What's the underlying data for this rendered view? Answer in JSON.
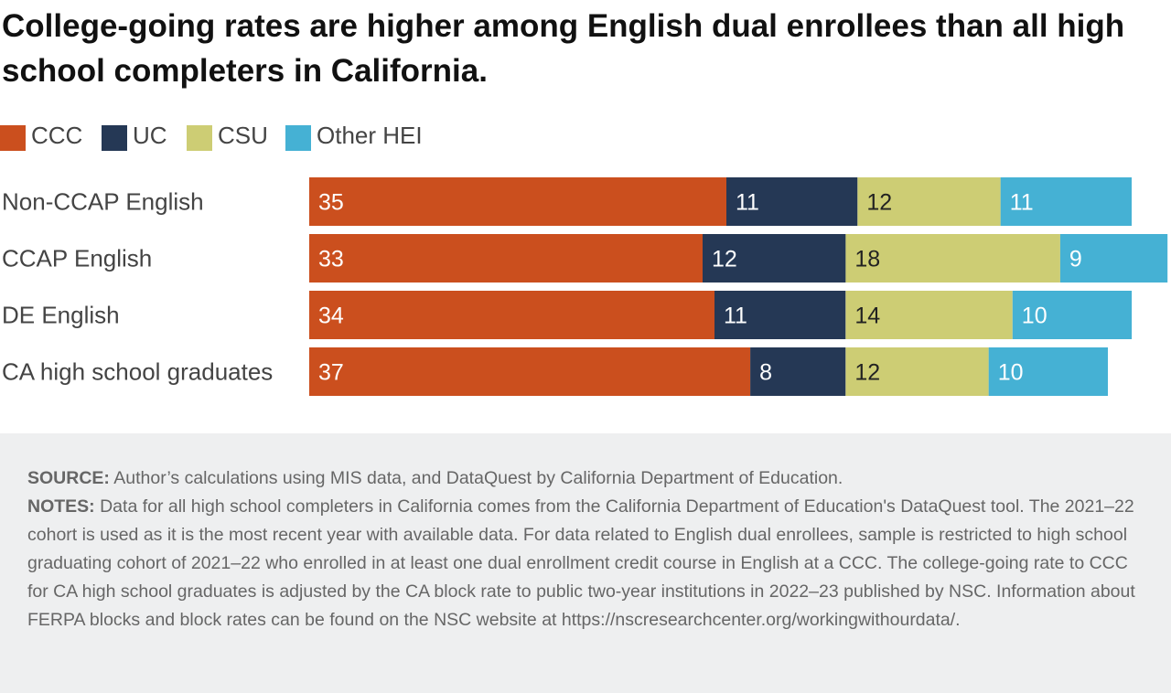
{
  "title": "College-going rates are higher among English dual enrollees than all high school completers in California.",
  "legend": [
    {
      "label": "CCC",
      "color": "#cb4f1e"
    },
    {
      "label": "UC",
      "color": "#253855"
    },
    {
      "label": "CSU",
      "color": "#cdcd74"
    },
    {
      "label": "Other HEI",
      "color": "#45b1d4"
    }
  ],
  "chart_data": {
    "type": "bar",
    "orientation": "horizontal",
    "stacked": true,
    "categories": [
      "Non-CCAP English",
      "CCAP English",
      "DE English",
      "CA high school graduates"
    ],
    "series": [
      {
        "name": "CCC",
        "color": "#cb4f1e",
        "label_color": "#ffffff",
        "values": [
          35,
          33,
          34,
          37
        ]
      },
      {
        "name": "UC",
        "color": "#253855",
        "label_color": "#ffffff",
        "values": [
          11,
          12,
          11,
          8
        ]
      },
      {
        "name": "CSU",
        "color": "#cdcd74",
        "label_color": "#222222",
        "values": [
          12,
          18,
          14,
          12
        ]
      },
      {
        "name": "Other HEI",
        "color": "#45b1d4",
        "label_color": "#ffffff",
        "values": [
          11,
          9,
          10,
          10
        ]
      }
    ],
    "xlim": [
      0,
      72
    ],
    "grid": false,
    "legend_position": "top-left"
  },
  "footer": {
    "source_lead": "SOURCE:",
    "source_text": "Author’s calculations using MIS data, and DataQuest by California Department of Education.",
    "notes_lead": "NOTES:",
    "notes_text": "Data for all high school completers in California comes from the California Department of Education's DataQuest tool. The 2021–22 cohort is used as it is the most recent year with available data. For data related to English dual enrollees, sample is restricted to high school graduating cohort of 2021–22 who enrolled in at least one dual enrollment credit course in English at a CCC. The college-going rate to CCC for CA high school graduates is adjusted by the CA block rate to public two-year institutions in 2022–23 published by NSC. Information about FERPA blocks and block rates can be found on the NSC website at https://nscresearchcenter.org/workingwithourdata/."
  }
}
